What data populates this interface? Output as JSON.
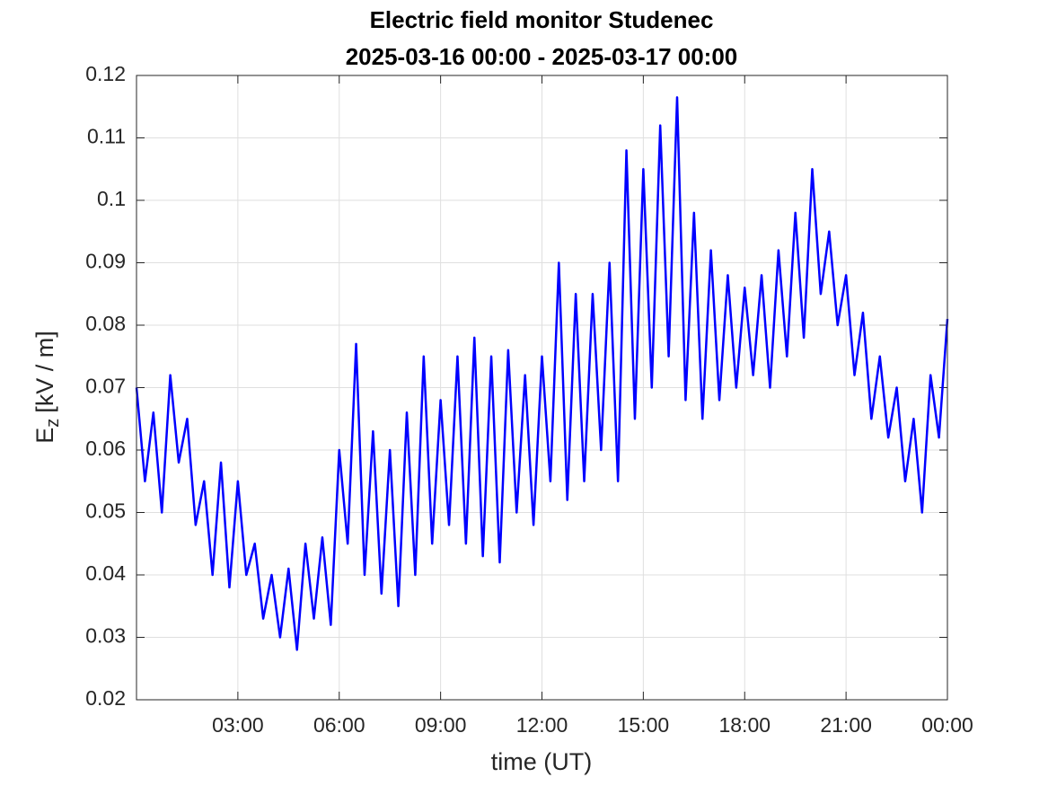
{
  "chart_data": {
    "type": "line",
    "title": "Electric field monitor Studenec",
    "subtitle": "2025-03-16 00:00 - 2025-03-17 00:00",
    "xlabel": "time (UT)",
    "ylabel": {
      "base": "E",
      "subscript": "z",
      "unit": "[kV / m]"
    },
    "xlim": [
      0,
      24
    ],
    "xticks": [
      {
        "value": 3,
        "label": "03:00"
      },
      {
        "value": 6,
        "label": "06:00"
      },
      {
        "value": 9,
        "label": "09:00"
      },
      {
        "value": 12,
        "label": "12:00"
      },
      {
        "value": 15,
        "label": "15:00"
      },
      {
        "value": 18,
        "label": "18:00"
      },
      {
        "value": 21,
        "label": "21:00"
      },
      {
        "value": 24,
        "label": "00:00"
      }
    ],
    "ylim": [
      0.02,
      0.12
    ],
    "yticks": [
      0.02,
      0.03,
      0.04,
      0.05,
      0.06,
      0.07,
      0.08,
      0.09,
      0.1,
      0.11,
      0.12
    ],
    "grid": true,
    "x": [
      0,
      0.25,
      0.5,
      0.75,
      1,
      1.25,
      1.5,
      1.75,
      2,
      2.25,
      2.5,
      2.75,
      3,
      3.25,
      3.5,
      3.75,
      4,
      4.25,
      4.5,
      4.75,
      5,
      5.25,
      5.5,
      5.75,
      6,
      6.25,
      6.5,
      6.75,
      7,
      7.25,
      7.5,
      7.75,
      8,
      8.25,
      8.5,
      8.75,
      9,
      9.25,
      9.5,
      9.75,
      10,
      10.25,
      10.5,
      10.75,
      11,
      11.25,
      11.5,
      11.75,
      12,
      12.25,
      12.5,
      12.75,
      13,
      13.25,
      13.5,
      13.75,
      14,
      14.25,
      14.5,
      14.75,
      15,
      15.25,
      15.5,
      15.75,
      16,
      16.25,
      16.5,
      16.75,
      17,
      17.25,
      17.5,
      17.75,
      18,
      18.25,
      18.5,
      18.75,
      19,
      19.25,
      19.5,
      19.75,
      20,
      20.25,
      20.5,
      20.75,
      21,
      21.25,
      21.5,
      21.75,
      22,
      22.25,
      22.5,
      22.75,
      23,
      23.25,
      23.5,
      23.75,
      24
    ],
    "series": [
      {
        "color": "#0000ff",
        "values": [
          0.07,
          0.055,
          0.066,
          0.05,
          0.072,
          0.058,
          0.065,
          0.048,
          0.055,
          0.04,
          0.058,
          0.038,
          0.055,
          0.04,
          0.045,
          0.033,
          0.04,
          0.03,
          0.041,
          0.028,
          0.045,
          0.033,
          0.046,
          0.032,
          0.06,
          0.045,
          0.077,
          0.04,
          0.063,
          0.037,
          0.06,
          0.035,
          0.066,
          0.04,
          0.075,
          0.045,
          0.068,
          0.048,
          0.075,
          0.045,
          0.078,
          0.043,
          0.075,
          0.042,
          0.076,
          0.05,
          0.072,
          0.048,
          0.075,
          0.055,
          0.09,
          0.052,
          0.085,
          0.055,
          0.085,
          0.06,
          0.09,
          0.055,
          0.108,
          0.065,
          0.105,
          0.07,
          0.112,
          0.075,
          0.1165,
          0.068,
          0.098,
          0.065,
          0.092,
          0.068,
          0.088,
          0.07,
          0.086,
          0.072,
          0.088,
          0.07,
          0.092,
          0.075,
          0.098,
          0.078,
          0.105,
          0.085,
          0.095,
          0.08,
          0.088,
          0.072,
          0.082,
          0.065,
          0.075,
          0.062,
          0.07,
          0.055,
          0.065,
          0.05,
          0.072,
          0.062,
          0.081
        ]
      }
    ]
  }
}
